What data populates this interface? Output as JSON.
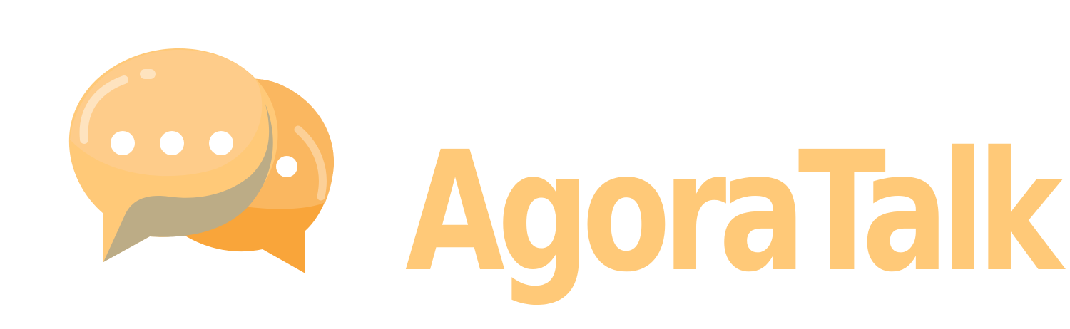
{
  "brand": {
    "name": "AgoraTalk",
    "text_color": "#ffc978"
  },
  "icon": {
    "name": "chat-bubbles-icon",
    "colors": {
      "front_bubble": "#ffc978",
      "front_bubble_highlight": "#fecc8a",
      "front_tail_shadow": "#bcac86",
      "back_bubble": "#fab760",
      "back_bubble_dark": "#f9a53a",
      "dots": "#ffffff"
    }
  }
}
